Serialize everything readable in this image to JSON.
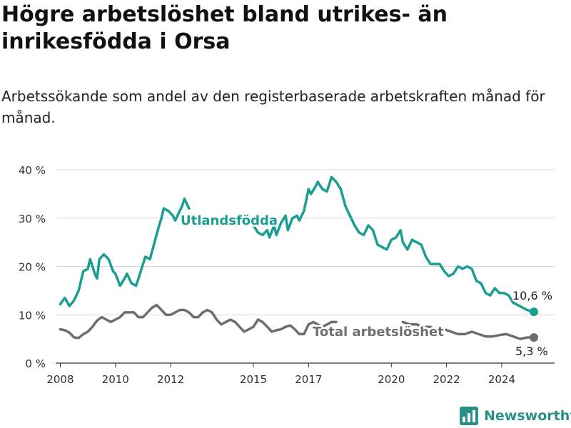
{
  "header": {
    "title": "Högre arbetslöshet bland utrikes- än inrikesfödda i Orsa",
    "subtitle": "Arbetssökande som andel av den registerbaserade arbetskraften månad för månad."
  },
  "brand": {
    "name": "Newsworthy",
    "color": "#2a8f87"
  },
  "chart_data": {
    "type": "line",
    "title": "",
    "xlabel": "",
    "ylabel": "",
    "ylim": [
      0,
      40
    ],
    "xlim": [
      "2007-11",
      "2025-12"
    ],
    "yticks": [
      0,
      10,
      20,
      30,
      40
    ],
    "ytick_labels": [
      "0 %",
      "10 %",
      "20 %",
      "30 %",
      "40 %"
    ],
    "xticks": [
      "2008",
      "2010",
      "2012",
      "2015",
      "2017",
      "2020",
      "2022",
      "2024"
    ],
    "grid": true,
    "legend": "inline labels",
    "series": [
      {
        "name": "Utlandsfödda",
        "color": "#1a9e93",
        "points": [
          [
            "2008-01",
            12.2
          ],
          [
            "2008-03",
            13.5
          ],
          [
            "2008-05",
            11.8
          ],
          [
            "2008-07",
            13.0
          ],
          [
            "2008-09",
            15.0
          ],
          [
            "2008-11",
            19.0
          ],
          [
            "2009-01",
            19.5
          ],
          [
            "2009-02",
            21.5
          ],
          [
            "2009-04",
            18.5
          ],
          [
            "2009-05",
            17.5
          ],
          [
            "2009-06",
            21.5
          ],
          [
            "2009-08",
            22.5
          ],
          [
            "2009-10",
            21.5
          ],
          [
            "2009-12",
            19.0
          ],
          [
            "2010-01",
            18.5
          ],
          [
            "2010-03",
            16.0
          ],
          [
            "2010-05",
            17.5
          ],
          [
            "2010-06",
            18.5
          ],
          [
            "2010-08",
            16.5
          ],
          [
            "2010-10",
            16.0
          ],
          [
            "2010-12",
            19.0
          ],
          [
            "2011-02",
            22.0
          ],
          [
            "2011-04",
            21.5
          ],
          [
            "2011-06",
            25.0
          ],
          [
            "2011-08",
            28.5
          ],
          [
            "2011-09",
            30.0
          ],
          [
            "2011-10",
            32.0
          ],
          [
            "2011-12",
            31.5
          ],
          [
            "2012-02",
            30.5
          ],
          [
            "2012-03",
            29.5
          ],
          [
            "2012-05",
            31.5
          ],
          [
            "2012-06",
            32.5
          ],
          [
            "2012-07",
            34.0
          ],
          [
            "2012-09",
            32.0
          ],
          [
            "2015-01",
            28.5
          ],
          [
            "2015-03",
            27.0
          ],
          [
            "2015-05",
            26.5
          ],
          [
            "2015-07",
            27.5
          ],
          [
            "2015-08",
            26.0
          ],
          [
            "2015-10",
            28.5
          ],
          [
            "2015-11",
            26.5
          ],
          [
            "2016-01",
            29.0
          ],
          [
            "2016-03",
            30.5
          ],
          [
            "2016-04",
            27.5
          ],
          [
            "2016-06",
            30.0
          ],
          [
            "2016-08",
            30.5
          ],
          [
            "2016-09",
            29.5
          ],
          [
            "2016-11",
            31.5
          ],
          [
            "2017-01",
            36.0
          ],
          [
            "2017-02",
            35.0
          ],
          [
            "2017-04",
            36.5
          ],
          [
            "2017-05",
            37.5
          ],
          [
            "2017-07",
            36.0
          ],
          [
            "2017-09",
            35.5
          ],
          [
            "2017-11",
            38.5
          ],
          [
            "2018-01",
            37.5
          ],
          [
            "2018-03",
            36.0
          ],
          [
            "2018-05",
            32.5
          ],
          [
            "2018-07",
            30.5
          ],
          [
            "2018-09",
            28.5
          ],
          [
            "2018-11",
            27.0
          ],
          [
            "2019-01",
            26.5
          ],
          [
            "2019-03",
            28.5
          ],
          [
            "2019-05",
            27.5
          ],
          [
            "2019-07",
            24.5
          ],
          [
            "2019-09",
            24.0
          ],
          [
            "2019-11",
            23.5
          ],
          [
            "2020-01",
            25.5
          ],
          [
            "2020-03",
            26.0
          ],
          [
            "2020-05",
            27.5
          ],
          [
            "2020-06",
            25.0
          ],
          [
            "2020-08",
            23.5
          ],
          [
            "2020-10",
            25.5
          ],
          [
            "2020-12",
            25.0
          ],
          [
            "2021-02",
            24.5
          ],
          [
            "2021-04",
            22.0
          ],
          [
            "2021-06",
            20.5
          ],
          [
            "2021-08",
            20.5
          ],
          [
            "2021-10",
            20.5
          ],
          [
            "2021-12",
            19.0
          ],
          [
            "2022-02",
            18.0
          ],
          [
            "2022-04",
            18.5
          ],
          [
            "2022-06",
            20.0
          ],
          [
            "2022-08",
            19.5
          ],
          [
            "2022-10",
            20.0
          ],
          [
            "2022-12",
            19.5
          ],
          [
            "2023-02",
            17.0
          ],
          [
            "2023-04",
            16.5
          ],
          [
            "2023-06",
            14.5
          ],
          [
            "2023-08",
            14.0
          ],
          [
            "2023-10",
            15.5
          ],
          [
            "2023-12",
            14.5
          ],
          [
            "2024-02",
            14.5
          ],
          [
            "2024-04",
            14.0
          ],
          [
            "2024-06",
            12.5
          ],
          [
            "2024-08",
            12.0
          ],
          [
            "2024-10",
            11.5
          ],
          [
            "2024-12",
            11.0
          ],
          [
            "2025-03",
            10.6
          ]
        ],
        "gaps": [
          [
            "2012-09",
            "2015-01"
          ],
          [
            "2023-12",
            "2024-06"
          ]
        ],
        "end_label": "10,6 %"
      },
      {
        "name": "Total arbetslöshet",
        "color": "#6e6e70",
        "points": [
          [
            "2008-01",
            7.0
          ],
          [
            "2008-03",
            6.8
          ],
          [
            "2008-05",
            6.3
          ],
          [
            "2008-07",
            5.3
          ],
          [
            "2008-09",
            5.2
          ],
          [
            "2008-11",
            6.0
          ],
          [
            "2009-01",
            6.5
          ],
          [
            "2009-03",
            7.5
          ],
          [
            "2009-05",
            8.8
          ],
          [
            "2009-07",
            9.5
          ],
          [
            "2009-09",
            9.0
          ],
          [
            "2009-11",
            8.5
          ],
          [
            "2010-01",
            9.0
          ],
          [
            "2010-03",
            9.5
          ],
          [
            "2010-05",
            10.5
          ],
          [
            "2010-07",
            10.5
          ],
          [
            "2010-09",
            10.5
          ],
          [
            "2010-11",
            9.5
          ],
          [
            "2011-01",
            9.5
          ],
          [
            "2011-03",
            10.5
          ],
          [
            "2011-05",
            11.5
          ],
          [
            "2011-07",
            12.0
          ],
          [
            "2011-09",
            11.0
          ],
          [
            "2011-11",
            10.0
          ],
          [
            "2012-01",
            10.0
          ],
          [
            "2012-03",
            10.5
          ],
          [
            "2012-05",
            11.0
          ],
          [
            "2012-07",
            11.0
          ],
          [
            "2012-09",
            10.5
          ],
          [
            "2012-11",
            9.5
          ],
          [
            "2013-01",
            9.5
          ],
          [
            "2013-03",
            10.5
          ],
          [
            "2013-05",
            11.0
          ],
          [
            "2013-07",
            10.5
          ],
          [
            "2013-09",
            9.0
          ],
          [
            "2013-11",
            8.0
          ],
          [
            "2014-01",
            8.5
          ],
          [
            "2014-03",
            9.0
          ],
          [
            "2014-05",
            8.5
          ],
          [
            "2014-07",
            7.5
          ],
          [
            "2014-09",
            6.5
          ],
          [
            "2014-11",
            7.0
          ],
          [
            "2015-01",
            7.5
          ],
          [
            "2015-03",
            9.0
          ],
          [
            "2015-05",
            8.5
          ],
          [
            "2015-07",
            7.5
          ],
          [
            "2015-09",
            6.5
          ],
          [
            "2015-11",
            6.8
          ],
          [
            "2016-01",
            7.0
          ],
          [
            "2016-03",
            7.5
          ],
          [
            "2016-05",
            7.8
          ],
          [
            "2016-07",
            7.0
          ],
          [
            "2016-09",
            6.0
          ],
          [
            "2016-11",
            6.0
          ],
          [
            "2017-01",
            8.0
          ],
          [
            "2017-03",
            8.5
          ],
          [
            "2017-05",
            8.0
          ],
          [
            "2017-07",
            7.5
          ],
          [
            "2017-09",
            8.0
          ],
          [
            "2017-11",
            8.5
          ],
          [
            "2018-01",
            8.5
          ],
          [
            "2020-06",
            8.5
          ],
          [
            "2020-09",
            8.0
          ],
          [
            "2020-12",
            8.0
          ],
          [
            "2021-03",
            7.5
          ],
          [
            "2021-06",
            7.5
          ],
          [
            "2021-09",
            6.5
          ],
          [
            "2021-12",
            7.0
          ],
          [
            "2022-03",
            6.5
          ],
          [
            "2022-06",
            6.0
          ],
          [
            "2022-09",
            6.0
          ],
          [
            "2022-12",
            6.5
          ],
          [
            "2023-03",
            6.0
          ],
          [
            "2023-06",
            5.5
          ],
          [
            "2023-09",
            5.5
          ],
          [
            "2023-12",
            5.8
          ],
          [
            "2024-03",
            6.0
          ],
          [
            "2024-06",
            5.5
          ],
          [
            "2024-09",
            5.0
          ],
          [
            "2024-12",
            5.3
          ],
          [
            "2025-03",
            5.3
          ]
        ],
        "gaps": [
          [
            "2018-01",
            "2020-06"
          ]
        ],
        "end_label": "5,3 %"
      }
    ]
  }
}
